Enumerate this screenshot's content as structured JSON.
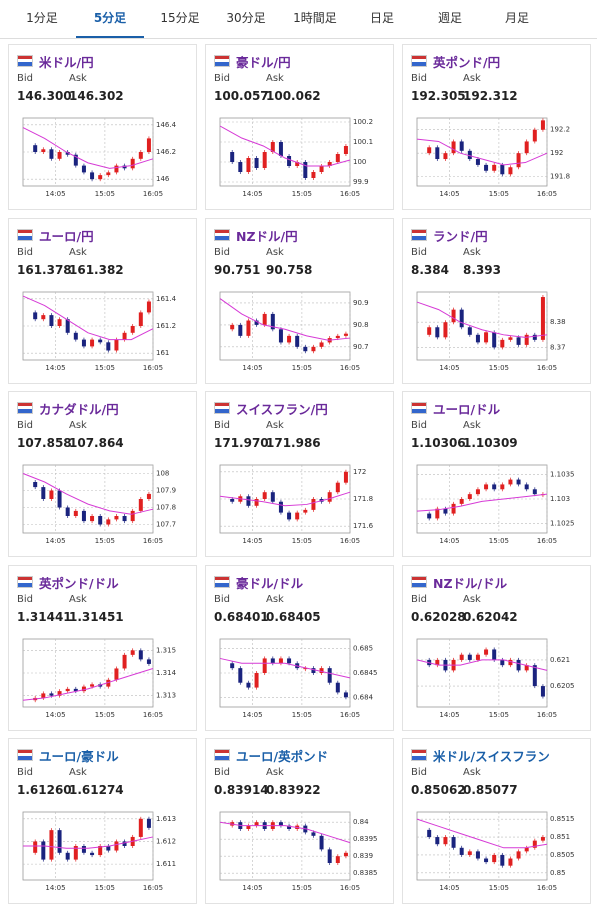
{
  "tabs": [
    "1分足",
    "5分足",
    "15分足",
    "30分足",
    "1時間足",
    "日足",
    "週足",
    "月足"
  ],
  "selected_tab": 1,
  "bid_label": "Bid",
  "ask_label": "Ask",
  "time_labels": [
    "14:05",
    "15:05",
    "16:05"
  ],
  "cards": [
    {
      "name": "米ドル/円",
      "bid": "146.300",
      "ask": "146.302",
      "ylim": [
        145.95,
        146.45
      ],
      "yticks": [
        146,
        146.2,
        146.4
      ],
      "values": [
        146.25,
        146.2,
        146.22,
        146.15,
        146.2,
        146.18,
        146.1,
        146.05,
        146.0,
        146.03,
        146.05,
        146.1,
        146.08,
        146.15,
        146.2,
        146.3
      ],
      "ma": [
        146.38,
        146.3,
        146.2,
        146.12,
        146.08,
        146.1,
        146.15
      ]
    },
    {
      "name": "豪ドル/円",
      "bid": "100.057",
      "ask": "100.062",
      "ylim": [
        99.88,
        100.22
      ],
      "yticks": [
        99.9,
        100,
        100.1,
        100.2
      ],
      "values": [
        100.05,
        100.0,
        99.95,
        100.02,
        99.97,
        100.05,
        100.1,
        100.03,
        99.98,
        100.0,
        99.92,
        99.95,
        99.98,
        100.0,
        100.04,
        100.08
      ],
      "ma": [
        100.18,
        100.12,
        100.08,
        100.02,
        99.98,
        99.98,
        100.01
      ]
    },
    {
      "name": "英ポンド/円",
      "bid": "192.305",
      "ask": "192.312",
      "ylim": [
        191.72,
        192.3
      ],
      "yticks": [
        191.8,
        192,
        192.2
      ],
      "values": [
        192.0,
        192.05,
        191.95,
        192.0,
        192.1,
        192.02,
        191.95,
        191.9,
        191.85,
        191.9,
        191.82,
        191.88,
        192.0,
        192.1,
        192.2,
        192.28
      ],
      "ma": [
        192.12,
        192.1,
        192.0,
        191.95,
        191.9,
        191.92,
        192.0
      ]
    },
    {
      "name": "ユーロ/円",
      "bid": "161.378",
      "ask": "161.382",
      "ylim": [
        160.95,
        161.45
      ],
      "yticks": [
        161,
        161.2,
        161.4
      ],
      "values": [
        161.3,
        161.25,
        161.28,
        161.2,
        161.25,
        161.15,
        161.1,
        161.05,
        161.1,
        161.08,
        161.02,
        161.1,
        161.15,
        161.2,
        161.3,
        161.38
      ],
      "ma": [
        161.42,
        161.35,
        161.25,
        161.15,
        161.1,
        161.1,
        161.18
      ]
    },
    {
      "name": "NZドル/円",
      "bid": "90.751",
      "ask": "90.758",
      "ylim": [
        90.64,
        90.95
      ],
      "yticks": [
        90.7,
        90.8,
        90.9
      ],
      "values": [
        90.78,
        90.8,
        90.75,
        90.82,
        90.8,
        90.85,
        90.78,
        90.72,
        90.75,
        90.7,
        90.68,
        90.7,
        90.72,
        90.74,
        90.75,
        90.76
      ],
      "ma": [
        90.92,
        90.85,
        90.8,
        90.78,
        90.75,
        90.73,
        90.74
      ]
    },
    {
      "name": "ランド/円",
      "bid": "8.384",
      "ask": "8.393",
      "ylim": [
        8.365,
        8.392
      ],
      "yticks": [
        8.37,
        8.38
      ],
      "values": [
        8.375,
        8.378,
        8.374,
        8.38,
        8.385,
        8.378,
        8.375,
        8.372,
        8.376,
        8.37,
        8.373,
        8.374,
        8.371,
        8.375,
        8.373,
        8.39
      ],
      "ma": [
        8.388,
        8.385,
        8.38,
        8.377,
        8.375,
        8.374,
        8.375
      ]
    },
    {
      "name": "カナダドル/円",
      "bid": "107.858",
      "ask": "107.864",
      "ylim": [
        107.65,
        108.05
      ],
      "yticks": [
        107.7,
        107.8,
        107.9,
        108
      ],
      "values": [
        107.95,
        107.92,
        107.85,
        107.9,
        107.8,
        107.75,
        107.78,
        107.72,
        107.75,
        107.7,
        107.73,
        107.75,
        107.72,
        107.78,
        107.85,
        107.88
      ],
      "ma": [
        108.0,
        107.95,
        107.88,
        107.82,
        107.78,
        107.76,
        107.79
      ]
    },
    {
      "name": "スイスフラン/円",
      "bid": "171.970",
      "ask": "171.986",
      "ylim": [
        171.55,
        172.05
      ],
      "yticks": [
        171.6,
        171.8,
        172
      ],
      "values": [
        171.8,
        171.78,
        171.82,
        171.75,
        171.8,
        171.85,
        171.78,
        171.7,
        171.65,
        171.7,
        171.72,
        171.8,
        171.78,
        171.85,
        171.92,
        172.0
      ],
      "ma": [
        171.82,
        171.8,
        171.78,
        171.75,
        171.76,
        171.8,
        171.85
      ]
    },
    {
      "name": "ユーロ/ドル",
      "bid": "1.10306",
      "ask": "1.10309",
      "ylim": [
        1.1023,
        1.1037
      ],
      "yticks": [
        1.1025,
        1.103,
        1.1035
      ],
      "values": [
        1.1027,
        1.1026,
        1.1028,
        1.1027,
        1.1029,
        1.103,
        1.1031,
        1.1032,
        1.1033,
        1.1032,
        1.1033,
        1.1034,
        1.1033,
        1.1032,
        1.1031,
        1.1031
      ],
      "ma": [
        1.10275,
        1.10278,
        1.10285,
        1.10295,
        1.103,
        1.10305,
        1.1031
      ]
    },
    {
      "name": "英ポンド/ドル",
      "bid": "1.31441",
      "ask": "1.31451",
      "ylim": [
        1.3125,
        1.3155
      ],
      "yticks": [
        1.313,
        1.314,
        1.315
      ],
      "values": [
        1.3128,
        1.3129,
        1.3131,
        1.313,
        1.3132,
        1.3133,
        1.3132,
        1.3134,
        1.3135,
        1.3134,
        1.3137,
        1.3142,
        1.3148,
        1.315,
        1.3146,
        1.3144
      ],
      "ma": [
        1.3128,
        1.3129,
        1.3131,
        1.3133,
        1.3136,
        1.3139,
        1.3142
      ]
    },
    {
      "name": "豪ドル/ドル",
      "bid": "0.68401",
      "ask": "0.68405",
      "ylim": [
        0.6838,
        0.6852
      ],
      "yticks": [
        0.684,
        0.6845,
        0.685
      ],
      "values": [
        0.6847,
        0.6846,
        0.6843,
        0.6842,
        0.6845,
        0.6848,
        0.6847,
        0.6848,
        0.6847,
        0.6846,
        0.6846,
        0.6845,
        0.6846,
        0.6843,
        0.6841,
        0.684
      ],
      "ma": [
        0.6848,
        0.6847,
        0.6847,
        0.6847,
        0.6846,
        0.6845,
        0.6844
      ]
    },
    {
      "name": "NZドル/ドル",
      "bid": "0.62028",
      "ask": "0.62042",
      "ylim": [
        0.6201,
        0.6214
      ],
      "yticks": [
        0.6205,
        0.621
      ],
      "values": [
        0.621,
        0.6209,
        0.621,
        0.6208,
        0.621,
        0.6211,
        0.621,
        0.6211,
        0.6212,
        0.621,
        0.6209,
        0.621,
        0.6208,
        0.6209,
        0.6205,
        0.6203
      ],
      "ma": [
        0.621,
        0.6209,
        0.6209,
        0.621,
        0.621,
        0.6209,
        0.6208
      ]
    },
    {
      "name": "ユーロ/豪ドル",
      "bid": "1.61260",
      "ask": "1.61274",
      "ylim": [
        1.6103,
        1.6133
      ],
      "yticks": [
        1.611,
        1.612,
        1.613
      ],
      "values": [
        1.6115,
        1.612,
        1.6112,
        1.6125,
        1.6115,
        1.6112,
        1.6118,
        1.6115,
        1.6114,
        1.6118,
        1.6116,
        1.612,
        1.6118,
        1.6122,
        1.613,
        1.6126
      ],
      "ma": [
        1.6118,
        1.6118,
        1.6117,
        1.6117,
        1.6118,
        1.612,
        1.6122
      ]
    },
    {
      "name": "ユーロ/英ポンド",
      "bid": "0.83914",
      "ask": "0.83922",
      "ylim": [
        0.8383,
        0.8403
      ],
      "yticks": [
        0.8385,
        0.839,
        0.8395,
        0.84
      ],
      "values": [
        0.8399,
        0.84,
        0.8398,
        0.8399,
        0.84,
        0.8398,
        0.84,
        0.8399,
        0.8398,
        0.8399,
        0.8397,
        0.8396,
        0.8392,
        0.8388,
        0.839,
        0.8391
      ],
      "ma": [
        0.84,
        0.8399,
        0.8399,
        0.8399,
        0.8398,
        0.8396,
        0.8394
      ]
    },
    {
      "name": "米ドル/スイスフラン",
      "bid": "0.85062",
      "ask": "0.85077",
      "ylim": [
        0.8498,
        0.8517
      ],
      "yticks": [
        0.85,
        0.8505,
        0.851,
        0.8515
      ],
      "values": [
        0.8512,
        0.851,
        0.8508,
        0.851,
        0.8507,
        0.8505,
        0.8506,
        0.8504,
        0.8503,
        0.8505,
        0.8502,
        0.8504,
        0.8506,
        0.8507,
        0.8509,
        0.851
      ],
      "ma": [
        0.8515,
        0.8513,
        0.8511,
        0.8509,
        0.8507,
        0.8507,
        0.8508
      ]
    }
  ]
}
